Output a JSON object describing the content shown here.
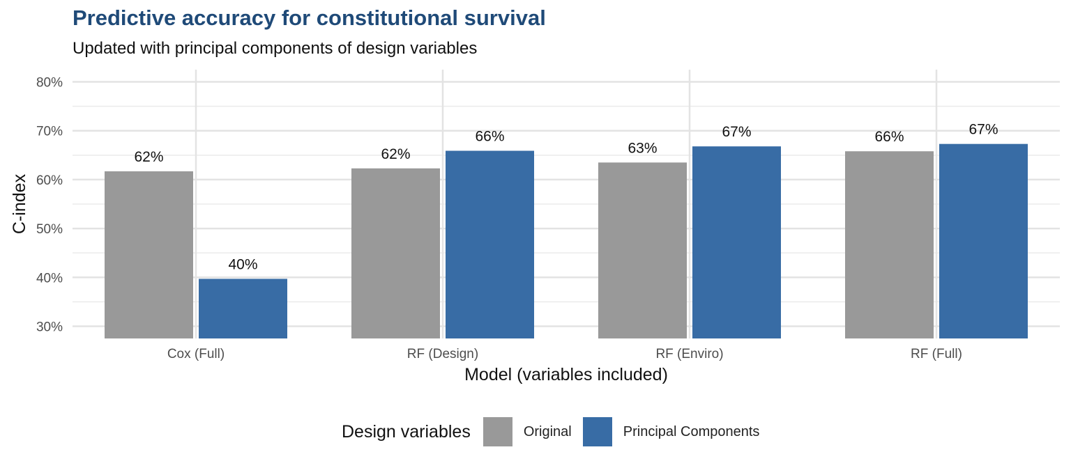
{
  "chart_data": {
    "type": "bar",
    "title": "Predictive accuracy for constitutional survival",
    "subtitle": "Updated with principal components of design variables",
    "xlabel": "Model (variables included)",
    "ylabel": "C-index",
    "categories": [
      "Cox (Full)",
      "RF (Design)",
      "RF (Enviro)",
      "RF (Full)"
    ],
    "series": [
      {
        "name": "Original",
        "color": "#999999",
        "values": [
          0.617,
          0.623,
          0.635,
          0.658
        ],
        "labels": [
          "62%",
          "62%",
          "63%",
          "66%"
        ]
      },
      {
        "name": "Principal Components",
        "color": "#386ca5",
        "values": [
          0.397,
          0.659,
          0.668,
          0.673
        ],
        "labels": [
          "40%",
          "66%",
          "67%",
          "67%"
        ]
      }
    ],
    "ylim": [
      0.275,
      0.825
    ],
    "yticks": [
      0.3,
      0.4,
      0.5,
      0.6,
      0.7,
      0.8
    ],
    "ytick_labels": [
      "30%",
      "40%",
      "50%",
      "60%",
      "70%",
      "80%"
    ],
    "grid": true,
    "legend_title": "Design variables",
    "legend_position": "bottom"
  }
}
